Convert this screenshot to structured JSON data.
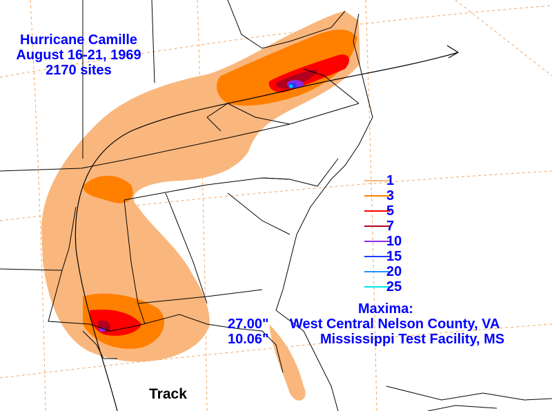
{
  "title": {
    "name": "Hurricane Camille",
    "dates": "August 16-21, 1969",
    "sites": "2170 sites"
  },
  "legend": [
    {
      "label": "1",
      "color": "#f9b77d"
    },
    {
      "label": "3",
      "color": "#ff7f00"
    },
    {
      "label": "5",
      "color": "#ff0000"
    },
    {
      "label": "7",
      "color": "#b2001f"
    },
    {
      "label": "10",
      "color": "#8a2be2"
    },
    {
      "label": "15",
      "color": "#1e3cff"
    },
    {
      "label": "20",
      "color": "#1e90ff"
    },
    {
      "label": "25",
      "color": "#00e5ee"
    }
  ],
  "maxima": {
    "title": "Maxima:",
    "rows": [
      {
        "value": "27.00\"",
        "location": "West Central Nelson County, VA"
      },
      {
        "value": "10.06\"",
        "location": "Mississippi Test Facility, MS"
      }
    ]
  },
  "track_label": "Track",
  "colors": {
    "text": "#0000ff",
    "boundary": "#000000",
    "graticule": "#f4a460",
    "track": "#000000"
  }
}
